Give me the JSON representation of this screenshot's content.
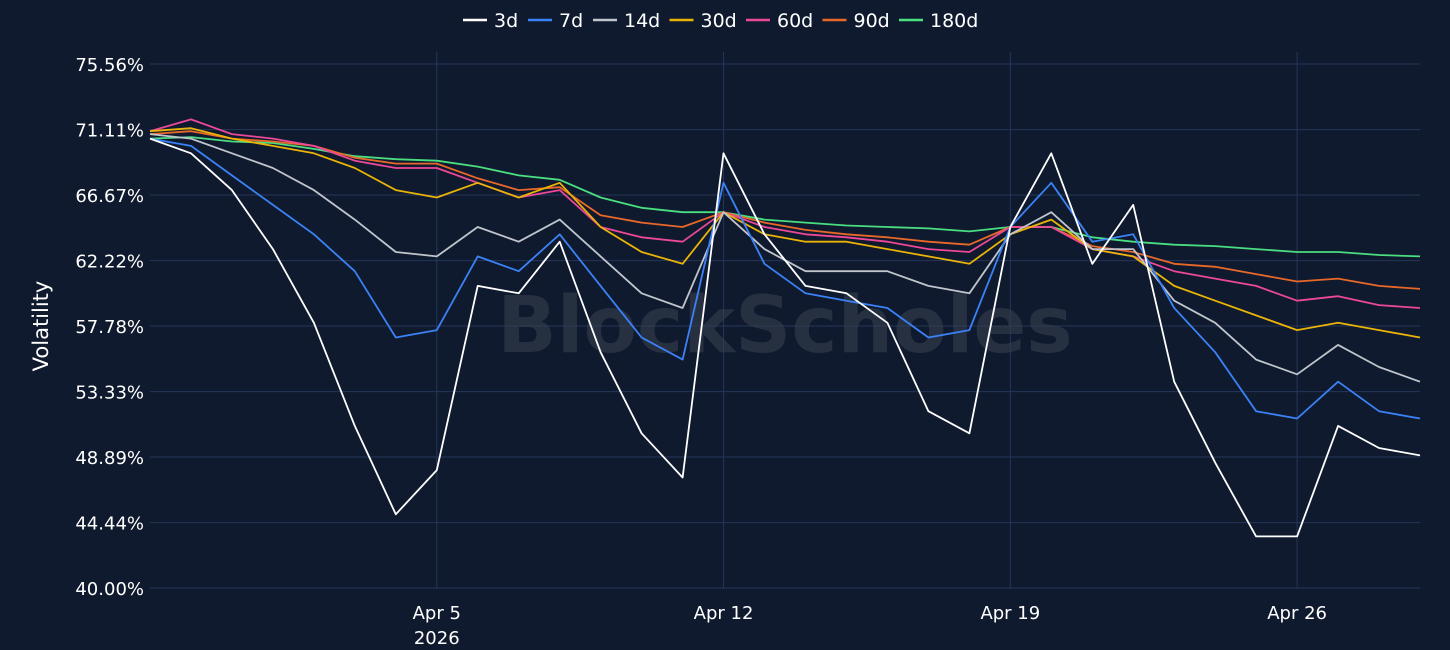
{
  "watermark": "BlockScholes",
  "colors": {
    "background": "#0f1a2e",
    "grid": "#26365a",
    "text": "#ffffff"
  },
  "chart_data": {
    "type": "line",
    "title": "",
    "xlabel": "",
    "ylabel": "Volatility",
    "x_range": [
      "2026-03-29",
      "2026-04-29"
    ],
    "x_ticks": [
      {
        "date": "2026-04-05",
        "label": "Apr 5",
        "sublabel": "2026"
      },
      {
        "date": "2026-04-12",
        "label": "Apr 12",
        "sublabel": ""
      },
      {
        "date": "2026-04-19",
        "label": "Apr 19",
        "sublabel": ""
      },
      {
        "date": "2026-04-26",
        "label": "Apr 26",
        "sublabel": ""
      }
    ],
    "ylim": [
      40.0,
      75.56
    ],
    "y_ticks": [
      40.0,
      44.44,
      48.89,
      53.33,
      57.78,
      62.22,
      66.67,
      71.11,
      75.56
    ],
    "y_tick_labels": [
      "40.00%",
      "44.44%",
      "48.89%",
      "53.33%",
      "57.78%",
      "62.22%",
      "66.67%",
      "71.11%",
      "75.56%"
    ],
    "grid": true,
    "legend_position": "top-center",
    "series": [
      {
        "name": "3d",
        "color": "#ffffff",
        "x": [
          "2026-03-29",
          "2026-03-30",
          "2026-03-31",
          "2026-04-01",
          "2026-04-02",
          "2026-04-03",
          "2026-04-04",
          "2026-04-05",
          "2026-04-06",
          "2026-04-07",
          "2026-04-08",
          "2026-04-09",
          "2026-04-10",
          "2026-04-11",
          "2026-04-12",
          "2026-04-13",
          "2026-04-14",
          "2026-04-15",
          "2026-04-16",
          "2026-04-17",
          "2026-04-18",
          "2026-04-19",
          "2026-04-20",
          "2026-04-21",
          "2026-04-22",
          "2026-04-23",
          "2026-04-24",
          "2026-04-25",
          "2026-04-26",
          "2026-04-27",
          "2026-04-28",
          "2026-04-29"
        ],
        "values": [
          70.5,
          69.5,
          67.0,
          63.0,
          58.0,
          51.0,
          45.0,
          48.0,
          60.5,
          60.0,
          63.5,
          56.0,
          50.5,
          47.5,
          69.5,
          64.0,
          60.5,
          60.0,
          58.0,
          52.0,
          50.5,
          64.5,
          69.5,
          62.0,
          66.0,
          54.0,
          48.5,
          43.5,
          43.5,
          51.0,
          49.5,
          49.0
        ]
      },
      {
        "name": "7d",
        "color": "#3b82f6",
        "x": [
          "2026-03-29",
          "2026-03-30",
          "2026-03-31",
          "2026-04-01",
          "2026-04-02",
          "2026-04-03",
          "2026-04-04",
          "2026-04-05",
          "2026-04-06",
          "2026-04-07",
          "2026-04-08",
          "2026-04-09",
          "2026-04-10",
          "2026-04-11",
          "2026-04-12",
          "2026-04-13",
          "2026-04-14",
          "2026-04-15",
          "2026-04-16",
          "2026-04-17",
          "2026-04-18",
          "2026-04-19",
          "2026-04-20",
          "2026-04-21",
          "2026-04-22",
          "2026-04-23",
          "2026-04-24",
          "2026-04-25",
          "2026-04-26",
          "2026-04-27",
          "2026-04-28",
          "2026-04-29"
        ],
        "values": [
          70.5,
          70.0,
          68.0,
          66.0,
          64.0,
          61.5,
          57.0,
          57.5,
          62.5,
          61.5,
          64.0,
          60.5,
          57.0,
          55.5,
          67.5,
          62.0,
          60.0,
          59.5,
          59.0,
          57.0,
          57.5,
          64.5,
          67.5,
          63.5,
          64.0,
          59.0,
          56.0,
          52.0,
          51.5,
          54.0,
          52.0,
          51.5
        ]
      },
      {
        "name": "14d",
        "color": "#c0c4cc",
        "x": [
          "2026-03-29",
          "2026-03-30",
          "2026-03-31",
          "2026-04-01",
          "2026-04-02",
          "2026-04-03",
          "2026-04-04",
          "2026-04-05",
          "2026-04-06",
          "2026-04-07",
          "2026-04-08",
          "2026-04-09",
          "2026-04-10",
          "2026-04-11",
          "2026-04-12",
          "2026-04-13",
          "2026-04-14",
          "2026-04-15",
          "2026-04-16",
          "2026-04-17",
          "2026-04-18",
          "2026-04-19",
          "2026-04-20",
          "2026-04-21",
          "2026-04-22",
          "2026-04-23",
          "2026-04-24",
          "2026-04-25",
          "2026-04-26",
          "2026-04-27",
          "2026-04-28",
          "2026-04-29"
        ],
        "values": [
          70.8,
          70.5,
          69.5,
          68.5,
          67.0,
          65.0,
          62.8,
          62.5,
          64.5,
          63.5,
          65.0,
          62.5,
          60.0,
          59.0,
          65.5,
          63.0,
          61.5,
          61.5,
          61.5,
          60.5,
          60.0,
          64.0,
          65.5,
          63.0,
          63.0,
          59.5,
          58.0,
          55.5,
          54.5,
          56.5,
          55.0,
          54.0
        ]
      },
      {
        "name": "30d",
        "color": "#eab308",
        "x": [
          "2026-03-29",
          "2026-03-30",
          "2026-03-31",
          "2026-04-01",
          "2026-04-02",
          "2026-04-03",
          "2026-04-04",
          "2026-04-05",
          "2026-04-06",
          "2026-04-07",
          "2026-04-08",
          "2026-04-09",
          "2026-04-10",
          "2026-04-11",
          "2026-04-12",
          "2026-04-13",
          "2026-04-14",
          "2026-04-15",
          "2026-04-16",
          "2026-04-17",
          "2026-04-18",
          "2026-04-19",
          "2026-04-20",
          "2026-04-21",
          "2026-04-22",
          "2026-04-23",
          "2026-04-24",
          "2026-04-25",
          "2026-04-26",
          "2026-04-27",
          "2026-04-28",
          "2026-04-29"
        ],
        "values": [
          71.0,
          71.2,
          70.5,
          70.0,
          69.5,
          68.5,
          67.0,
          66.5,
          67.5,
          66.5,
          67.5,
          64.5,
          62.8,
          62.0,
          65.5,
          64.0,
          63.5,
          63.5,
          63.0,
          62.5,
          62.0,
          64.0,
          65.0,
          63.0,
          62.5,
          60.5,
          59.5,
          58.5,
          57.5,
          58.0,
          57.5,
          57.0
        ]
      },
      {
        "name": "60d",
        "color": "#ec4899",
        "x": [
          "2026-03-29",
          "2026-03-30",
          "2026-03-31",
          "2026-04-01",
          "2026-04-02",
          "2026-04-03",
          "2026-04-04",
          "2026-04-05",
          "2026-04-06",
          "2026-04-07",
          "2026-04-08",
          "2026-04-09",
          "2026-04-10",
          "2026-04-11",
          "2026-04-12",
          "2026-04-13",
          "2026-04-14",
          "2026-04-15",
          "2026-04-16",
          "2026-04-17",
          "2026-04-18",
          "2026-04-19",
          "2026-04-20",
          "2026-04-21",
          "2026-04-22",
          "2026-04-23",
          "2026-04-24",
          "2026-04-25",
          "2026-04-26",
          "2026-04-27",
          "2026-04-28",
          "2026-04-29"
        ],
        "values": [
          71.0,
          71.8,
          70.8,
          70.5,
          70.0,
          69.0,
          68.5,
          68.5,
          67.5,
          66.5,
          67.0,
          64.5,
          63.8,
          63.5,
          65.5,
          64.5,
          64.0,
          63.8,
          63.5,
          63.0,
          62.8,
          64.5,
          64.5,
          63.0,
          62.5,
          61.5,
          61.0,
          60.5,
          59.5,
          59.8,
          59.2,
          59.0
        ]
      },
      {
        "name": "90d",
        "color": "#e8682a",
        "x": [
          "2026-03-29",
          "2026-03-30",
          "2026-03-31",
          "2026-04-01",
          "2026-04-02",
          "2026-04-03",
          "2026-04-04",
          "2026-04-05",
          "2026-04-06",
          "2026-04-07",
          "2026-04-08",
          "2026-04-09",
          "2026-04-10",
          "2026-04-11",
          "2026-04-12",
          "2026-04-13",
          "2026-04-14",
          "2026-04-15",
          "2026-04-16",
          "2026-04-17",
          "2026-04-18",
          "2026-04-19",
          "2026-04-20",
          "2026-04-21",
          "2026-04-22",
          "2026-04-23",
          "2026-04-24",
          "2026-04-25",
          "2026-04-26",
          "2026-04-27",
          "2026-04-28",
          "2026-04-29"
        ],
        "values": [
          70.8,
          71.0,
          70.5,
          70.3,
          70.0,
          69.2,
          68.8,
          68.8,
          67.8,
          67.0,
          67.2,
          65.3,
          64.8,
          64.5,
          65.5,
          64.8,
          64.3,
          64.0,
          63.8,
          63.5,
          63.3,
          64.5,
          64.5,
          63.2,
          62.8,
          62.0,
          61.8,
          61.3,
          60.8,
          61.0,
          60.5,
          60.3
        ]
      },
      {
        "name": "180d",
        "color": "#4ade80",
        "x": [
          "2026-03-29",
          "2026-03-30",
          "2026-03-31",
          "2026-04-01",
          "2026-04-02",
          "2026-04-03",
          "2026-04-04",
          "2026-04-05",
          "2026-04-06",
          "2026-04-07",
          "2026-04-08",
          "2026-04-09",
          "2026-04-10",
          "2026-04-11",
          "2026-04-12",
          "2026-04-13",
          "2026-04-14",
          "2026-04-15",
          "2026-04-16",
          "2026-04-17",
          "2026-04-18",
          "2026-04-19",
          "2026-04-20",
          "2026-04-21",
          "2026-04-22",
          "2026-04-23",
          "2026-04-24",
          "2026-04-25",
          "2026-04-26",
          "2026-04-27",
          "2026-04-28",
          "2026-04-29"
        ],
        "values": [
          70.5,
          70.6,
          70.3,
          70.2,
          69.8,
          69.3,
          69.1,
          69.0,
          68.6,
          68.0,
          67.7,
          66.5,
          65.8,
          65.5,
          65.5,
          65.0,
          64.8,
          64.6,
          64.5,
          64.4,
          64.2,
          64.5,
          64.5,
          63.8,
          63.5,
          63.3,
          63.2,
          63.0,
          62.8,
          62.8,
          62.6,
          62.5
        ]
      }
    ]
  }
}
